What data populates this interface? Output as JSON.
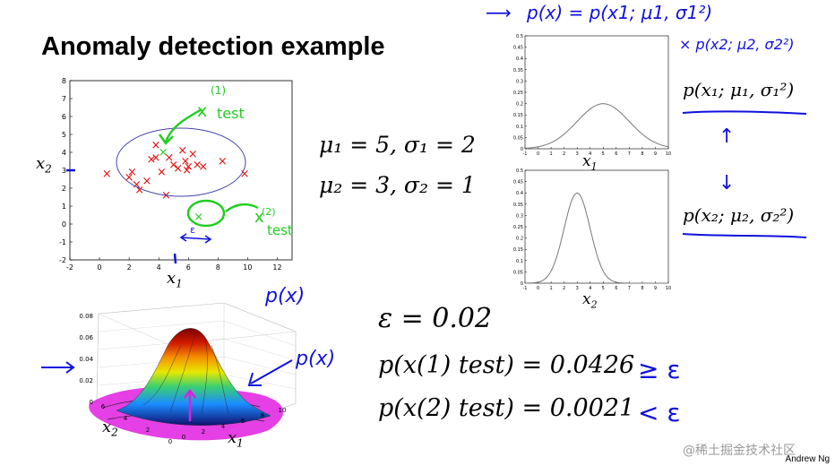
{
  "slide": {
    "title": "Anomaly detection example",
    "footer": "Andrew Ng",
    "watermark": "@稀土掘金技术社区"
  },
  "scatter": {
    "x_label": "x1",
    "y_label": "x2",
    "x_ticks": [
      "-2",
      "0",
      "2",
      "4",
      "6",
      "8",
      "10",
      "12"
    ],
    "y_ticks": [
      "-2",
      "-1",
      "0",
      "1",
      "2",
      "3",
      "4",
      "5",
      "6",
      "7",
      "8"
    ],
    "x_range": [
      -2,
      13
    ],
    "y_range": [
      -2,
      8
    ],
    "points": [
      [
        0.5,
        2.8
      ],
      [
        2,
        2.6
      ],
      [
        2.2,
        2.9
      ],
      [
        2.5,
        2.2
      ],
      [
        2.7,
        1.9
      ],
      [
        3.2,
        2.4
      ],
      [
        3.5,
        3.6
      ],
      [
        3.8,
        4.4
      ],
      [
        4.2,
        2.9
      ],
      [
        4.5,
        1.6
      ],
      [
        4.7,
        3.7
      ],
      [
        5,
        3.3
      ],
      [
        5.3,
        3.1
      ],
      [
        5.6,
        4.1
      ],
      [
        5.8,
        3.5
      ],
      [
        6,
        3.2
      ],
      [
        6.3,
        3.9
      ],
      [
        6.6,
        3.3
      ],
      [
        7,
        3.2
      ],
      [
        8.3,
        3.5
      ],
      [
        9.8,
        2.8
      ],
      [
        3.8,
        3.7
      ],
      [
        5.9,
        3.0
      ]
    ],
    "test_points": [
      [
        4.3,
        4.0
      ],
      [
        6.7,
        0.4
      ]
    ],
    "annotations": [
      "x(1) test",
      "x(2) test",
      "ε"
    ]
  },
  "params": {
    "line1": "μ₁ = 5, σ₁ = 2",
    "line2": "μ₂ = 3, σ₂ = 1"
  },
  "pdf_plots": {
    "plot1": {
      "mean": 5,
      "sd": 2,
      "x_label": "x1",
      "x_ticks": [
        "-1",
        "0",
        "1",
        "2",
        "3",
        "4",
        "5",
        "6",
        "7",
        "8",
        "9",
        "10"
      ],
      "y_ticks": [
        "0",
        "0.05",
        "0.1",
        "0.15",
        "0.2",
        "0.25",
        "0.3",
        "0.35",
        "0.4",
        "0.45",
        "0.5"
      ]
    },
    "plot2": {
      "mean": 3,
      "sd": 1,
      "x_label": "x2",
      "x_ticks": [
        "-1",
        "0",
        "1",
        "2",
        "3",
        "4",
        "5",
        "6",
        "7",
        "8",
        "9",
        "10"
      ],
      "y_ticks": [
        "0",
        "0.05",
        "0.1",
        "0.15",
        "0.2",
        "0.25",
        "0.3",
        "0.35",
        "0.4",
        "0.45",
        "0.5"
      ]
    }
  },
  "handwriting": {
    "formula_top": "p(x) = p(x1; μ1, σ1²)",
    "formula_top2": "× p(x2; μ2, σ2²)",
    "label1": "p(x₁; μ₁, σ₁²)",
    "label2": "p(x₂; μ₂, σ₂²)",
    "surface_px_top": "p(x)",
    "surface_px_right": "p(x)"
  },
  "surface": {
    "z_ticks": [
      "0",
      "0.02",
      "0.04",
      "0.06",
      "0.08"
    ],
    "x1_label": "x1",
    "x2_label": "x2",
    "x1_ticks": [
      "0",
      "2",
      "4",
      "6",
      "8",
      "10"
    ],
    "x2_ticks": [
      "0",
      "2",
      "4",
      "6"
    ]
  },
  "results": {
    "epsilon": "ε = 0.02",
    "p1": "p(x(1) test) = 0.0426",
    "p2": "p(x(2) test) = 0.0021",
    "cmp1": "≥ ε",
    "cmp2": "< ε"
  }
}
